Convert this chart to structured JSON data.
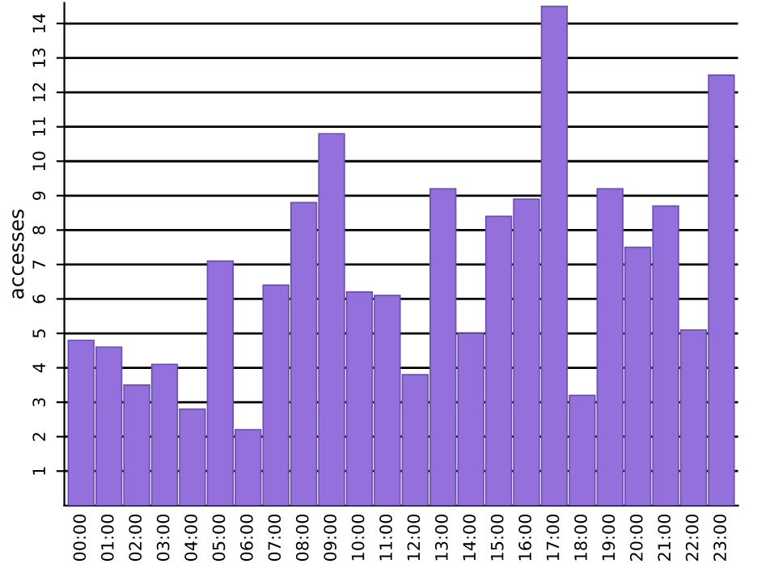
{
  "chart_data": {
    "type": "bar",
    "ylabel": "accesses",
    "categories": [
      "00:00",
      "01:00",
      "02:00",
      "03:00",
      "04:00",
      "05:00",
      "06:00",
      "07:00",
      "08:00",
      "09:00",
      "10:00",
      "11:00",
      "12:00",
      "13:00",
      "14:00",
      "15:00",
      "16:00",
      "17:00",
      "18:00",
      "19:00",
      "20:00",
      "21:00",
      "22:00",
      "23:00"
    ],
    "values": [
      4.8,
      4.6,
      3.5,
      4.1,
      2.8,
      7.1,
      2.2,
      6.4,
      8.8,
      10.8,
      6.2,
      6.1,
      3.8,
      9.2,
      5.0,
      8.4,
      8.9,
      14.5,
      3.2,
      9.2,
      7.5,
      8.7,
      5.1,
      12.5
    ],
    "color": "#9370db",
    "ylim": [
      0,
      14.6
    ],
    "yticks": [
      1,
      2,
      3,
      4,
      5,
      6,
      7,
      8,
      9,
      10,
      11,
      12,
      13,
      14
    ],
    "grid": "y"
  }
}
